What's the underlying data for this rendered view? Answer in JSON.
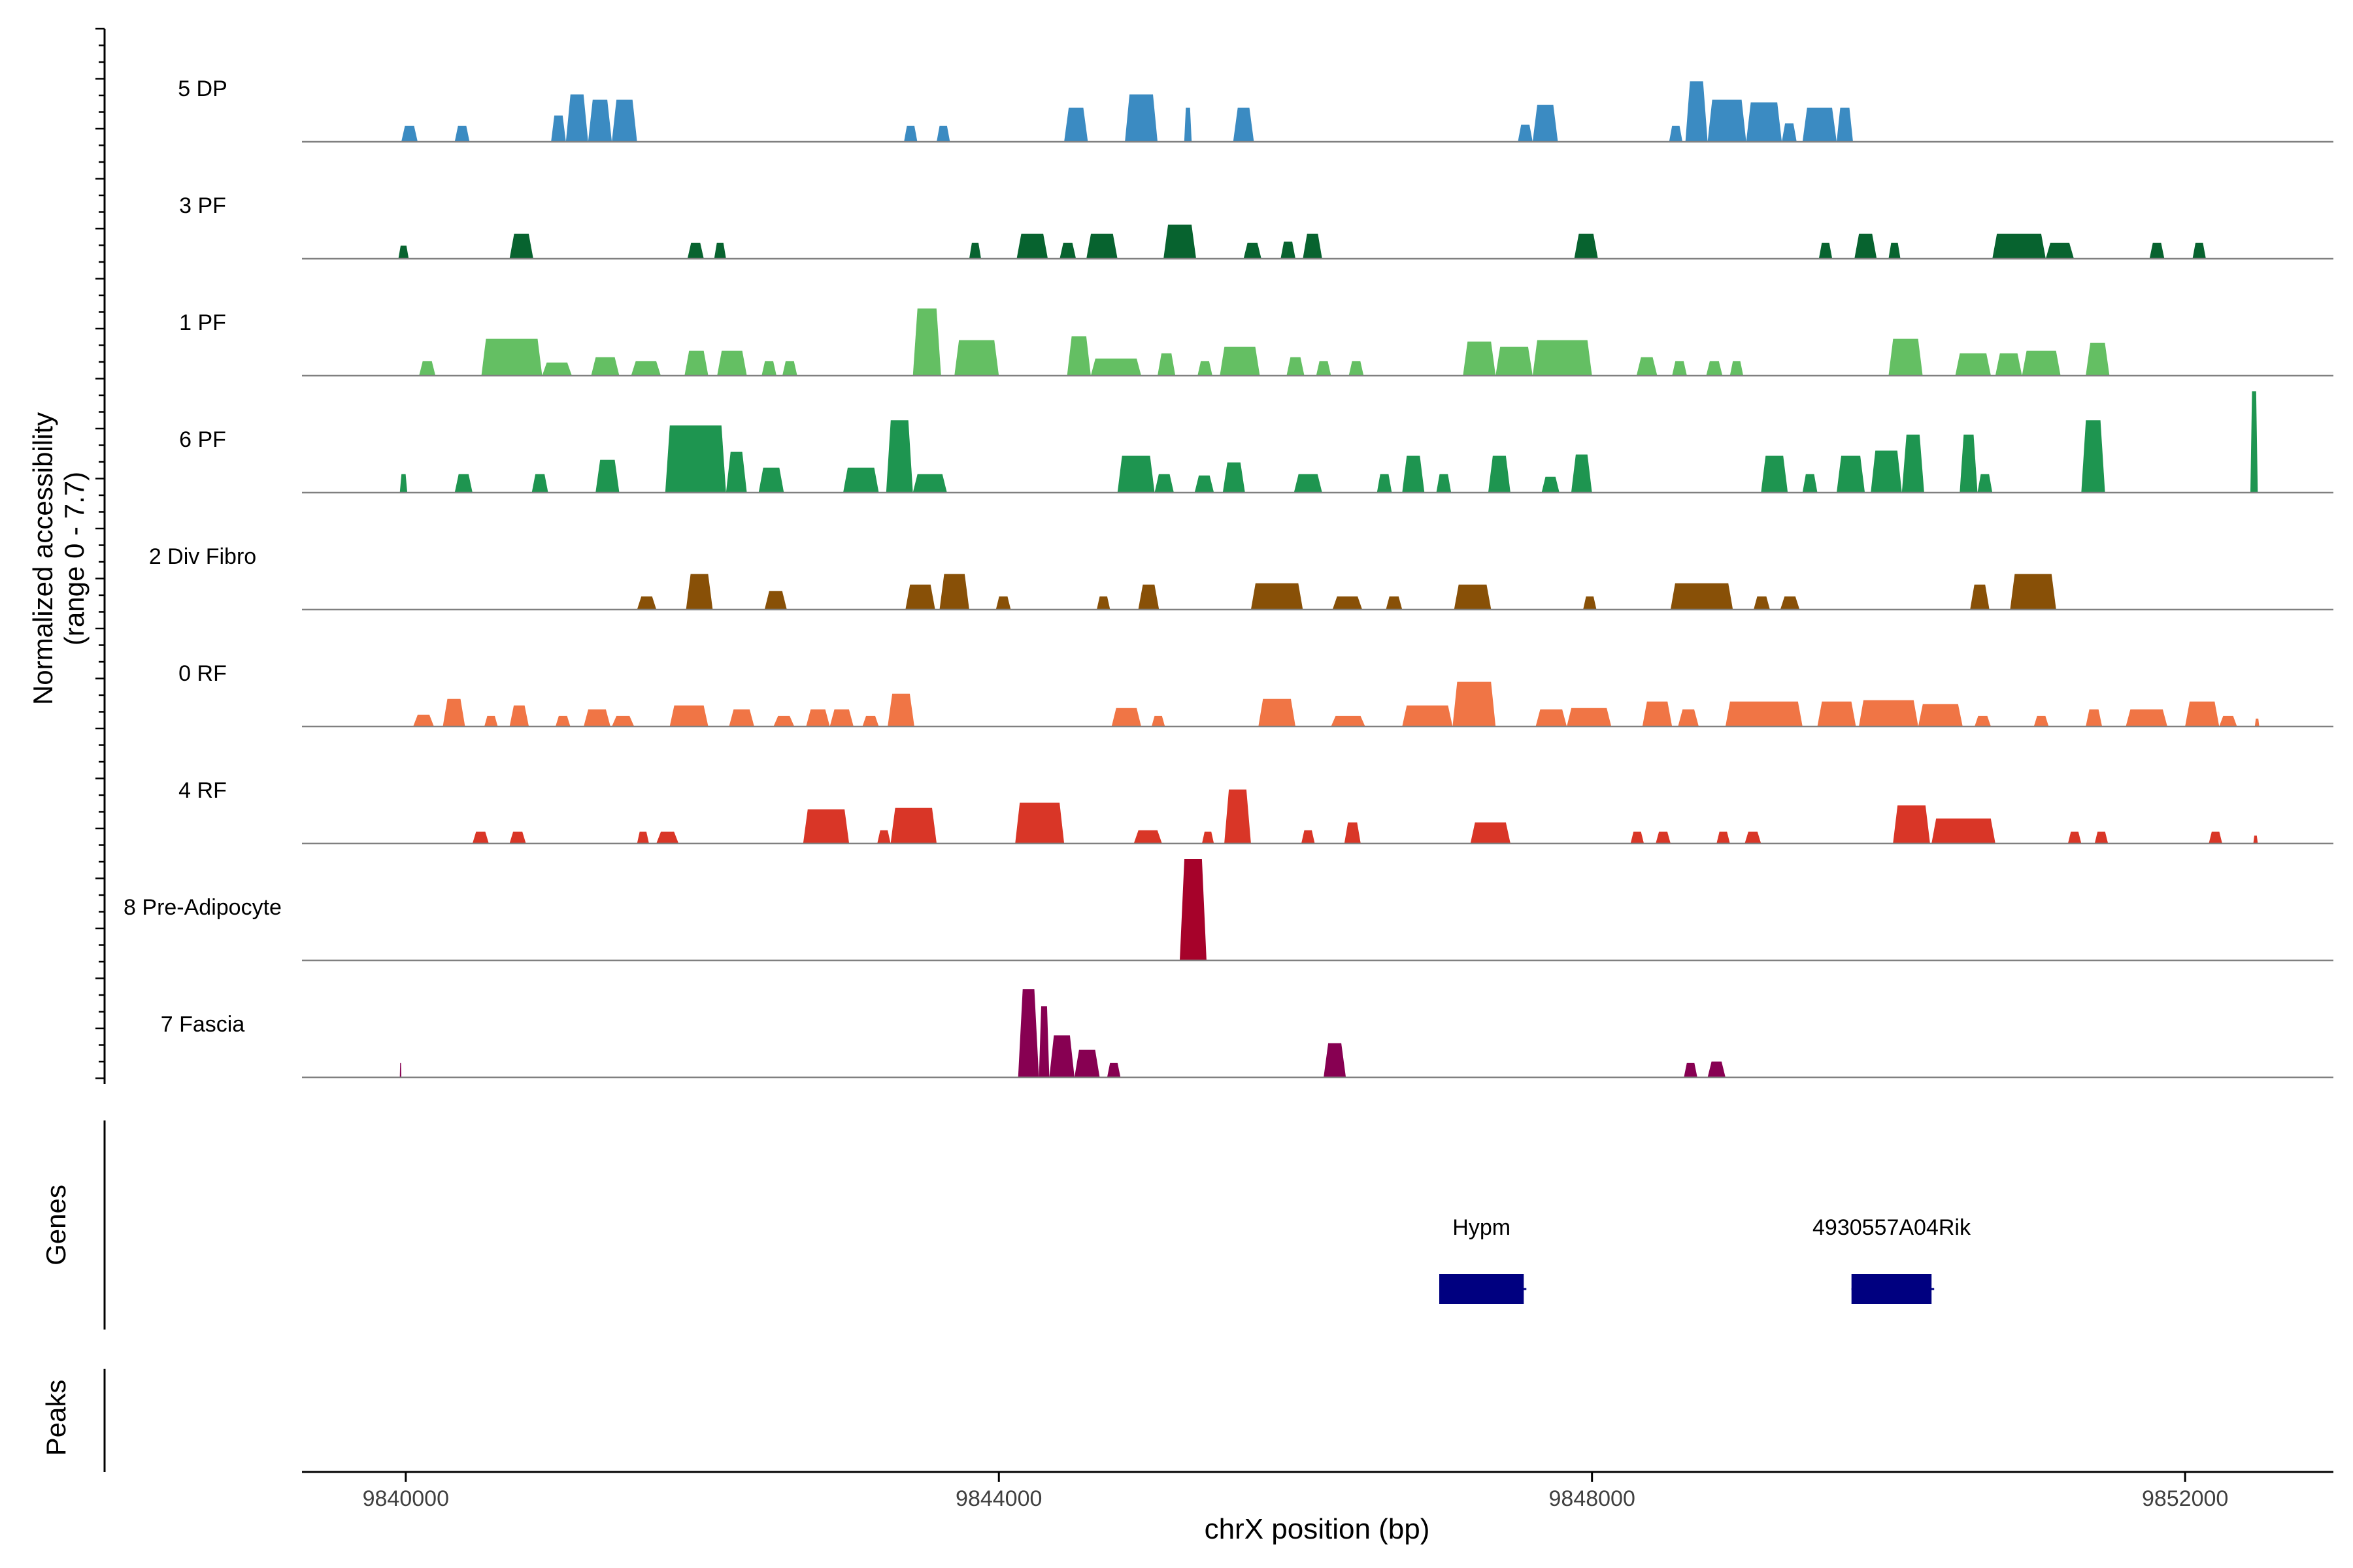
{
  "chart_data": {
    "type": "area",
    "x": {
      "label": "chrX position (bp)",
      "lim": [
        9839300,
        9853000
      ],
      "ticks": [
        9840000,
        9844000,
        9848000,
        9852000
      ],
      "tick_labels": [
        "9840000",
        "9844000",
        "9848000",
        "9852000"
      ]
    },
    "y": {
      "label_line1": "Normalized accessibility",
      "label_line2": "(range 0 - 7.7)",
      "range": [
        0,
        7.7
      ]
    },
    "tracks": [
      {
        "name": "5 DP",
        "color": "#3B8BC2",
        "peaks": [
          [
            9839970,
            9840080,
            1.2
          ],
          [
            9840330,
            9840430,
            1.2
          ],
          [
            9840980,
            9841080,
            2.0
          ],
          [
            9841080,
            9841230,
            3.6
          ],
          [
            9841230,
            9841390,
            3.2
          ],
          [
            9841390,
            9841560,
            3.2
          ],
          [
            9843360,
            9843450,
            1.2
          ],
          [
            9843580,
            9843670,
            1.2
          ],
          [
            9844440,
            9844600,
            2.6
          ],
          [
            9844850,
            9845070,
            3.6
          ],
          [
            9845250,
            9845300,
            2.6
          ],
          [
            9845580,
            9845720,
            2.6
          ],
          [
            9847500,
            9847600,
            1.3
          ],
          [
            9847600,
            9847770,
            2.8
          ],
          [
            9848520,
            9848610,
            1.2
          ],
          [
            9848630,
            9848780,
            4.6
          ],
          [
            9848780,
            9849040,
            3.2
          ],
          [
            9849040,
            9849280,
            3.0
          ],
          [
            9849280,
            9849380,
            1.4
          ],
          [
            9849420,
            9849650,
            2.6
          ],
          [
            9849650,
            9849760,
            2.6
          ]
        ]
      },
      {
        "name": "3 PF",
        "color": "#07632F",
        "peaks": [
          [
            9839950,
            9840020,
            1.0
          ],
          [
            9840700,
            9840860,
            1.9
          ],
          [
            9841900,
            9842010,
            1.2
          ],
          [
            9842080,
            9842160,
            1.2
          ],
          [
            9843800,
            9843880,
            1.2
          ],
          [
            9844120,
            9844330,
            1.9
          ],
          [
            9844410,
            9844520,
            1.2
          ],
          [
            9844590,
            9844800,
            1.9
          ],
          [
            9845110,
            9845330,
            2.6
          ],
          [
            9845650,
            9845770,
            1.2
          ],
          [
            9845900,
            9846000,
            1.3
          ],
          [
            9846050,
            9846180,
            1.9
          ],
          [
            9847880,
            9848040,
            1.9
          ],
          [
            9849530,
            9849620,
            1.2
          ],
          [
            9849770,
            9849920,
            1.9
          ],
          [
            9850000,
            9850080,
            1.2
          ],
          [
            9850700,
            9851060,
            1.9
          ],
          [
            9851060,
            9851250,
            1.2
          ],
          [
            9851760,
            9851860,
            1.2
          ],
          [
            9852050,
            9852140,
            1.2
          ]
        ]
      },
      {
        "name": "1 PF",
        "color": "#64BF63",
        "peaks": [
          [
            9840090,
            9840200,
            1.1
          ],
          [
            9840510,
            9840920,
            2.8
          ],
          [
            9840920,
            9841120,
            1.0
          ],
          [
            9841250,
            9841440,
            1.4
          ],
          [
            9841520,
            9841720,
            1.1
          ],
          [
            9841880,
            9842040,
            1.9
          ],
          [
            9842100,
            9842300,
            1.9
          ],
          [
            9842400,
            9842500,
            1.1
          ],
          [
            9842540,
            9842640,
            1.1
          ],
          [
            9843420,
            9843610,
            5.1
          ],
          [
            9843700,
            9844000,
            2.7
          ],
          [
            9844460,
            9844620,
            3.0
          ],
          [
            9844620,
            9844960,
            1.3
          ],
          [
            9845070,
            9845190,
            1.7
          ],
          [
            9845340,
            9845440,
            1.1
          ],
          [
            9845490,
            9845760,
            2.2
          ],
          [
            9845940,
            9846060,
            1.4
          ],
          [
            9846140,
            9846240,
            1.1
          ],
          [
            9846360,
            9846460,
            1.1
          ],
          [
            9847130,
            9847350,
            2.6
          ],
          [
            9847350,
            9847600,
            2.2
          ],
          [
            9847600,
            9848000,
            2.7
          ],
          [
            9848300,
            9848440,
            1.4
          ],
          [
            9848540,
            9848640,
            1.1
          ],
          [
            9848770,
            9848880,
            1.1
          ],
          [
            9848930,
            9849020,
            1.1
          ],
          [
            9850000,
            9850230,
            2.8
          ],
          [
            9850450,
            9850690,
            1.7
          ],
          [
            9850720,
            9850900,
            1.7
          ],
          [
            9850900,
            9851160,
            1.9
          ],
          [
            9851330,
            9851490,
            2.5
          ]
        ]
      },
      {
        "name": "6 PF",
        "color": "#1E9550",
        "peaks": [
          [
            9839960,
            9840010,
            1.4
          ],
          [
            9840330,
            9840450,
            1.4
          ],
          [
            9840850,
            9840960,
            1.4
          ],
          [
            9841280,
            9841440,
            2.5
          ],
          [
            9841750,
            9842160,
            5.1
          ],
          [
            9842160,
            9842300,
            3.1
          ],
          [
            9842380,
            9842550,
            1.9
          ],
          [
            9842950,
            9843190,
            1.9
          ],
          [
            9843240,
            9843420,
            5.5
          ],
          [
            9843420,
            9843650,
            1.4
          ],
          [
            9844800,
            9845050,
            2.8
          ],
          [
            9845050,
            9845180,
            1.4
          ],
          [
            9845320,
            9845450,
            1.3
          ],
          [
            9845510,
            9845660,
            2.3
          ],
          [
            9845990,
            9846180,
            1.4
          ],
          [
            9846550,
            9846650,
            1.4
          ],
          [
            9846720,
            9846870,
            2.8
          ],
          [
            9846950,
            9847050,
            1.4
          ],
          [
            9847300,
            9847450,
            2.8
          ],
          [
            9847660,
            9847780,
            1.2
          ],
          [
            9847860,
            9848000,
            2.9
          ],
          [
            9849140,
            9849320,
            2.8
          ],
          [
            9849420,
            9849520,
            1.4
          ],
          [
            9849650,
            9849840,
            2.8
          ],
          [
            9849880,
            9850090,
            3.2
          ],
          [
            9850090,
            9850240,
            4.4
          ],
          [
            9850480,
            9850600,
            4.4
          ],
          [
            9850600,
            9850700,
            1.4
          ],
          [
            9851300,
            9851460,
            5.5
          ],
          [
            9852440,
            9852490,
            7.7
          ]
        ]
      },
      {
        "name": "2 Div Fibro",
        "color": "#885007",
        "peaks": [
          [
            9841560,
            9841690,
            1.0
          ],
          [
            9841890,
            9842070,
            2.7
          ],
          [
            9842420,
            9842570,
            1.4
          ],
          [
            9843370,
            9843570,
            1.9
          ],
          [
            9843600,
            9843800,
            2.7
          ],
          [
            9843980,
            9844080,
            1.0
          ],
          [
            9844660,
            9844750,
            1.0
          ],
          [
            9844940,
            9845080,
            1.9
          ],
          [
            9845700,
            9846050,
            2.0
          ],
          [
            9846250,
            9846450,
            1.0
          ],
          [
            9846610,
            9846720,
            1.0
          ],
          [
            9847070,
            9847320,
            1.9
          ],
          [
            9847940,
            9848030,
            1.0
          ],
          [
            9848530,
            9848950,
            2.0
          ],
          [
            9849090,
            9849200,
            1.0
          ],
          [
            9849270,
            9849400,
            1.0
          ],
          [
            9850550,
            9850680,
            1.9
          ],
          [
            9850820,
            9851130,
            2.7
          ]
        ]
      },
      {
        "name": "0 RF",
        "color": "#F07545",
        "peaks": [
          [
            9840050,
            9840190,
            0.9
          ],
          [
            9840250,
            9840400,
            2.1
          ],
          [
            9840530,
            9840620,
            0.8
          ],
          [
            9840700,
            9840830,
            1.6
          ],
          [
            9841010,
            9841110,
            0.8
          ],
          [
            9841200,
            9841380,
            1.3
          ],
          [
            9841390,
            9841540,
            0.8
          ],
          [
            9841780,
            9842040,
            1.6
          ],
          [
            9842180,
            9842350,
            1.3
          ],
          [
            9842480,
            9842620,
            0.8
          ],
          [
            9842700,
            9842860,
            1.3
          ],
          [
            9842860,
            9843020,
            1.3
          ],
          [
            9843080,
            9843190,
            0.8
          ],
          [
            9843250,
            9843430,
            2.5
          ],
          [
            9844760,
            9844960,
            1.4
          ],
          [
            9845030,
            9845120,
            0.8
          ],
          [
            9845750,
            9846000,
            2.1
          ],
          [
            9846240,
            9846470,
            0.8
          ],
          [
            9846720,
            9847060,
            1.6
          ],
          [
            9847060,
            9847350,
            3.4
          ],
          [
            9847620,
            9847830,
            1.3
          ],
          [
            9847830,
            9848130,
            1.4
          ],
          [
            9848340,
            9848540,
            1.9
          ],
          [
            9848580,
            9848720,
            1.3
          ],
          [
            9848900,
            9849420,
            1.9
          ],
          [
            9849520,
            9849780,
            1.9
          ],
          [
            9849800,
            9850200,
            2.0
          ],
          [
            9850200,
            9850500,
            1.7
          ],
          [
            9850580,
            9850690,
            0.8
          ],
          [
            9850980,
            9851080,
            0.8
          ],
          [
            9851330,
            9851440,
            1.3
          ],
          [
            9851600,
            9851880,
            1.3
          ],
          [
            9852000,
            9852230,
            1.9
          ],
          [
            9852230,
            9852350,
            0.8
          ],
          [
            9852470,
            9852500,
            0.6
          ]
        ]
      },
      {
        "name": "4 RF",
        "color": "#D93627",
        "peaks": [
          [
            9840450,
            9840560,
            0.9
          ],
          [
            9840700,
            9840810,
            0.9
          ],
          [
            9841560,
            9841640,
            0.9
          ],
          [
            9841690,
            9841840,
            0.9
          ],
          [
            9842680,
            9842990,
            2.6
          ],
          [
            9843180,
            9843270,
            1.0
          ],
          [
            9843270,
            9843580,
            2.7
          ],
          [
            9844110,
            9844440,
            3.1
          ],
          [
            9844910,
            9845100,
            1.0
          ],
          [
            9845370,
            9845450,
            0.9
          ],
          [
            9845520,
            9845700,
            4.1
          ],
          [
            9846040,
            9846130,
            1.0
          ],
          [
            9846330,
            9846440,
            1.6
          ],
          [
            9847180,
            9847450,
            1.6
          ],
          [
            9848260,
            9848350,
            0.9
          ],
          [
            9848430,
            9848530,
            0.9
          ],
          [
            9848840,
            9848930,
            0.9
          ],
          [
            9849030,
            9849140,
            0.9
          ],
          [
            9850030,
            9850280,
            2.9
          ],
          [
            9850290,
            9850720,
            1.9
          ],
          [
            9851210,
            9851300,
            0.9
          ],
          [
            9851390,
            9851480,
            0.9
          ],
          [
            9852160,
            9852250,
            0.9
          ],
          [
            9852460,
            9852490,
            0.6
          ]
        ]
      },
      {
        "name": "8 Pre-Adipocyte",
        "color": "#A6022A",
        "peaks": [
          [
            9845220,
            9845400,
            7.7
          ]
        ]
      },
      {
        "name": "7 Fascia",
        "color": "#870052",
        "peaks": [
          [
            9839960,
            9839970,
            1.1
          ],
          [
            9844130,
            9844270,
            6.7
          ],
          [
            9844270,
            9844340,
            5.4
          ],
          [
            9844340,
            9844510,
            3.2
          ],
          [
            9844510,
            9844680,
            2.1
          ],
          [
            9844730,
            9844820,
            1.1
          ],
          [
            9846190,
            9846340,
            2.6
          ],
          [
            9848620,
            9848710,
            1.1
          ],
          [
            9848780,
            9848900,
            1.2
          ]
        ]
      }
    ],
    "genes": {
      "title": "Genes",
      "items": [
        {
          "name": "Hypm",
          "start": 9846970,
          "end": 9847540,
          "color": "#000080"
        },
        {
          "name": "4930557A04Rik",
          "start": 9849750,
          "end": 9850290,
          "color": "#000080"
        }
      ]
    },
    "peaks_panel": {
      "title": "Peaks"
    }
  }
}
